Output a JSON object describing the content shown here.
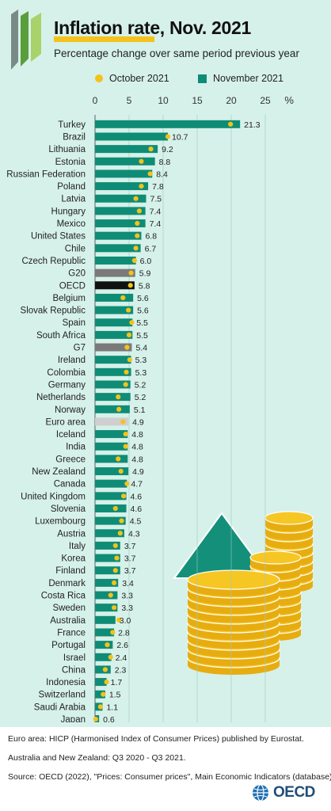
{
  "header": {
    "title": "Inflation rate, Nov. 2021",
    "subtitle": "Percentage change over same period previous year"
  },
  "legend": {
    "october_label": "October 2021",
    "november_label": "November 2021"
  },
  "colors": {
    "background": "#d6f1ea",
    "bar": "#0f8c76",
    "marker": "#f4c21b",
    "aggregate_dark": "#111111",
    "aggregate_grey": "#7a7a7a",
    "aggregate_light": "#cfcfcf"
  },
  "chart_data": {
    "type": "bar",
    "orientation": "horizontal",
    "x_unit": "%",
    "xlim": [
      0,
      25
    ],
    "x_ticks": [
      0,
      5,
      10,
      15,
      20,
      25
    ],
    "grid": true,
    "legend_position": "top",
    "categories": [
      "Turkey",
      "Brazil",
      "Lithuania",
      "Estonia",
      "Russian Federation",
      "Poland",
      "Latvia",
      "Hungary",
      "Mexico",
      "United States",
      "Chile",
      "Czech Republic",
      "G20",
      "OECD",
      "Belgium",
      "Slovak Republic",
      "Spain",
      "South Africa",
      "G7",
      "Ireland",
      "Colombia",
      "Germany",
      "Netherlands",
      "Norway",
      "Euro area",
      "Iceland",
      "India",
      "Greece",
      "New Zealand",
      "Canada",
      "United Kingdom",
      "Slovenia",
      "Luxembourg",
      "Austria",
      "Italy",
      "Korea",
      "Finland",
      "Denmark",
      "Costa Rica",
      "Sweden",
      "Australia",
      "France",
      "Portugal",
      "Israel",
      "China",
      "Indonesia",
      "Switzerland",
      "Saudi Arabia",
      "Japan"
    ],
    "value_labels": [
      "21.3",
      "10.7",
      "9.2",
      "8.8",
      "8.4",
      "7.8",
      "7.5",
      "7.4",
      "7.4",
      "6.8",
      "6.7",
      "6.0",
      "5.9",
      "5.8",
      "5.6",
      "5.6",
      "5.5",
      "5.5",
      "5.4",
      "5.3",
      "5.3",
      "5.2",
      "5.2",
      "5.1",
      "4.9",
      "4.8",
      "4.8",
      "4.8",
      "4.9",
      "4.7",
      "4.6",
      "4.6",
      "4.5",
      "4.3",
      "3.7",
      "3.7",
      "3.7",
      "3.4",
      "3.3",
      "3.3",
      "3.0",
      "2.8",
      "2.6",
      "2.4",
      "2.3",
      "1.7",
      "1.5",
      "1.1",
      "0.6"
    ],
    "series": [
      {
        "name": "November 2021",
        "values": [
          21.3,
          10.7,
          9.2,
          8.8,
          8.4,
          7.8,
          7.5,
          7.4,
          7.4,
          6.8,
          6.7,
          6.0,
          5.9,
          5.8,
          5.6,
          5.6,
          5.5,
          5.5,
          5.4,
          5.3,
          5.3,
          5.2,
          5.2,
          5.1,
          4.9,
          4.8,
          4.8,
          4.8,
          4.9,
          4.7,
          4.6,
          4.6,
          4.5,
          4.3,
          3.7,
          3.7,
          3.7,
          3.4,
          3.3,
          3.3,
          3.0,
          2.8,
          2.6,
          2.4,
          2.3,
          1.7,
          1.5,
          1.1,
          0.6
        ]
      },
      {
        "name": "October 2021",
        "values": [
          19.9,
          10.7,
          8.2,
          6.8,
          8.1,
          6.8,
          6.0,
          6.5,
          6.2,
          6.2,
          6.0,
          5.8,
          5.3,
          5.2,
          4.1,
          4.9,
          5.4,
          5.0,
          4.7,
          5.1,
          4.6,
          4.5,
          3.4,
          3.5,
          4.1,
          4.5,
          4.5,
          3.4,
          3.8,
          4.7,
          4.2,
          3.0,
          3.9,
          3.7,
          3.0,
          3.2,
          3.0,
          2.8,
          2.3,
          2.8,
          3.5,
          2.6,
          1.8,
          2.3,
          1.5,
          1.7,
          1.2,
          0.8,
          0.1
        ]
      }
    ],
    "aggregates": {
      "G20": "grey",
      "OECD": "dark",
      "G7": "grey",
      "Euro area": "light"
    }
  },
  "footnotes": {
    "euro_area": "Euro area: HICP (Harmonised Index of Consumer Prices) published by Eurostat.",
    "aus_nz": "Australia and New Zealand: Q3 2020 - Q3 2021.",
    "source": "Source: OECD (2022), \"Prices: Consumer prices\", Main Economic Indicators (database)"
  },
  "brand": {
    "logo_text": "OECD",
    "logo_icon": "oecd-globe-icon",
    "header_icon": "oecd-chevrons-icon",
    "illustration": "arrow-and-coins-illustration"
  }
}
